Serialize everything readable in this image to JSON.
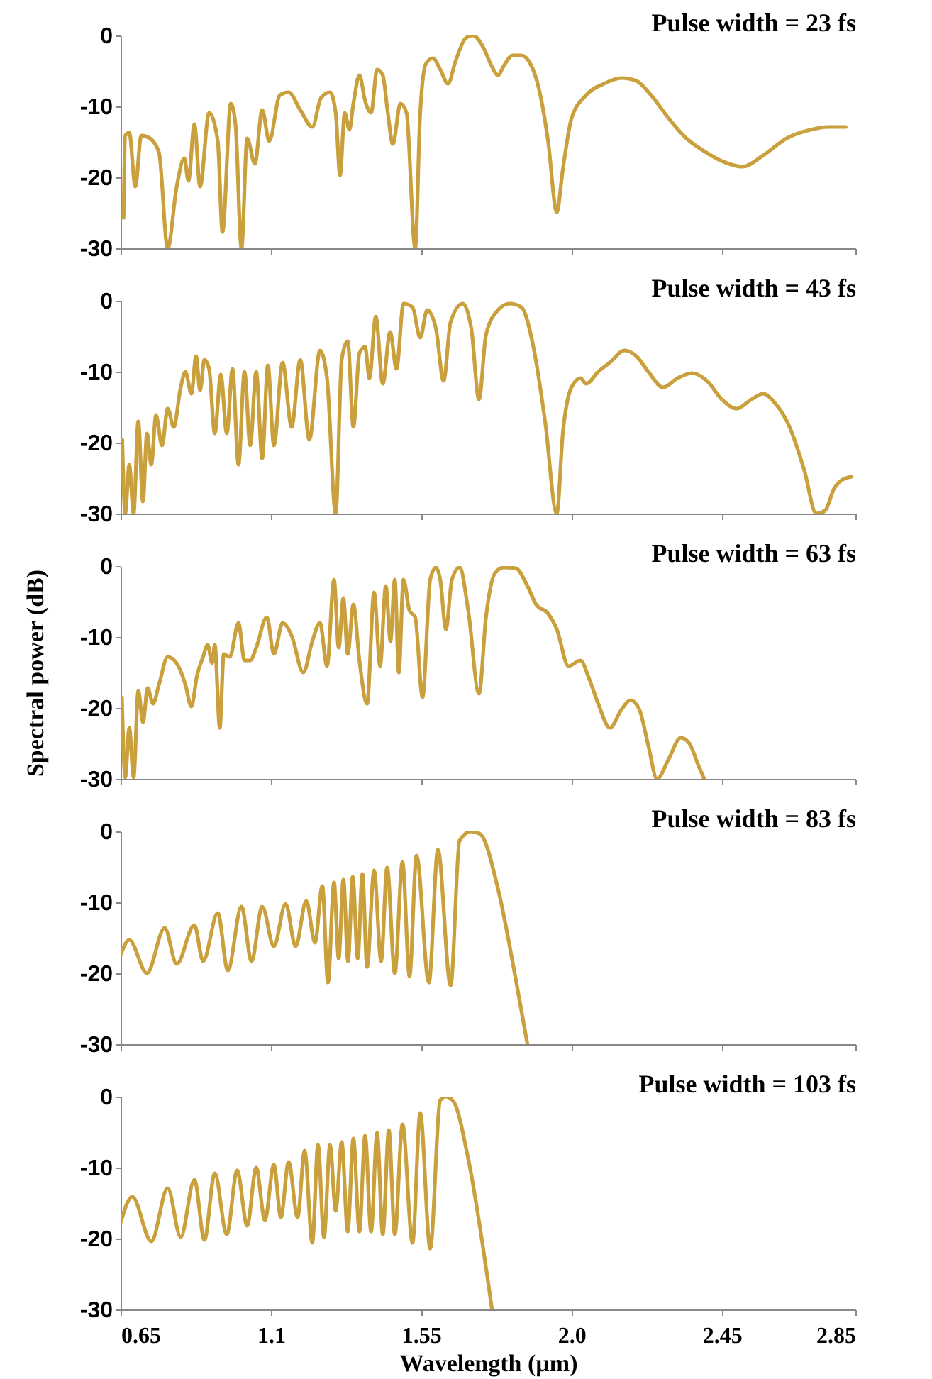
{
  "chart_data": [
    {
      "type": "line",
      "title": "Pulse width = 23 fs",
      "color": "#c9a03c",
      "xlim": [
        0.65,
        2.85
      ],
      "xticks": [
        0.65,
        1.1,
        1.55,
        2,
        2.45,
        2.85
      ],
      "ylim": [
        -30,
        0
      ],
      "yticks": [
        0,
        -10,
        -20,
        -30
      ],
      "tick_labels": "y",
      "x": [
        0.659,
        0.664,
        0.676,
        0.694,
        0.712,
        0.738,
        0.765,
        0.791,
        0.818,
        0.841,
        0.853,
        0.871,
        0.888,
        0.915,
        0.941,
        0.955,
        0.98,
        0.994,
        1.012,
        1.029,
        1.052,
        1.074,
        1.095,
        1.127,
        1.153,
        1.188,
        1.224,
        1.25,
        1.277,
        1.294,
        1.307,
        1.321,
        1.335,
        1.347,
        1.365,
        1.382,
        1.4,
        1.418,
        1.435,
        1.45,
        1.465,
        1.488,
        1.506,
        1.532,
        1.547,
        1.564,
        1.585,
        1.607,
        1.63,
        1.653,
        1.683,
        1.705,
        1.735,
        1.762,
        1.78,
        1.797,
        1.824,
        1.85,
        1.877,
        1.903,
        1.93,
        1.956,
        1.974,
        2.0,
        2.044,
        2.097,
        2.15,
        2.194,
        2.238,
        2.291,
        2.344,
        2.397,
        2.45,
        2.512,
        2.574,
        2.644,
        2.715,
        2.768,
        2.821
      ],
      "values": [
        -25.7,
        -14.1,
        -13.7,
        -21.3,
        -14.1,
        -14.5,
        -16.5,
        -30,
        -21.3,
        -17.3,
        -20.5,
        -12.5,
        -21.3,
        -10.9,
        -14.9,
        -27.7,
        -9.6,
        -12.5,
        -30,
        -14.5,
        -18.1,
        -10.5,
        -14.9,
        -8.4,
        -8.0,
        -10.5,
        -12.9,
        -8.8,
        -8.0,
        -10.9,
        -19.7,
        -10.9,
        -13.3,
        -9.6,
        -5.6,
        -9.2,
        -10.9,
        -4.8,
        -5.6,
        -10.9,
        -15.3,
        -9.6,
        -10.9,
        -30,
        -10.9,
        -4.0,
        -3.2,
        -4.8,
        -6.8,
        -3.6,
        -0.4,
        0,
        -1.6,
        -4.4,
        -5.6,
        -4.3,
        -2.8,
        -2.8,
        -4.0,
        -7.6,
        -14.9,
        -24.9,
        -18.9,
        -11.7,
        -8.4,
        -6.8,
        -6.0,
        -6.4,
        -8.4,
        -11.7,
        -14.5,
        -16.3,
        -17.7,
        -18.5,
        -16.9,
        -14.5,
        -13.3,
        -12.9,
        -12.9
      ]
    },
    {
      "type": "line",
      "title": "Pulse width = 43 fs",
      "color": "#c9a03c",
      "xlim": [
        0.65,
        2.85
      ],
      "xticks": [
        0.65,
        1.1,
        1.55,
        2,
        2.45,
        2.85
      ],
      "ylim": [
        -30,
        0
      ],
      "yticks": [
        0,
        -10,
        -20,
        -30
      ],
      "tick_labels": "y",
      "x": [
        0.655,
        0.664,
        0.676,
        0.689,
        0.703,
        0.717,
        0.729,
        0.742,
        0.756,
        0.774,
        0.791,
        0.809,
        0.83,
        0.844,
        0.862,
        0.876,
        0.888,
        0.901,
        0.915,
        0.932,
        0.95,
        0.968,
        0.985,
        1.003,
        1.021,
        1.038,
        1.056,
        1.074,
        1.091,
        1.109,
        1.135,
        1.162,
        1.188,
        1.215,
        1.247,
        1.268,
        1.294,
        1.312,
        1.33,
        1.347,
        1.365,
        1.382,
        1.395,
        1.414,
        1.435,
        1.457,
        1.476,
        1.497,
        1.524,
        1.547,
        1.568,
        1.594,
        1.617,
        1.638,
        1.674,
        1.7,
        1.723,
        1.744,
        1.78,
        1.815,
        1.85,
        1.886,
        1.921,
        1.956,
        1.974,
        2.0,
        2.027,
        2.044,
        2.08,
        2.115,
        2.159,
        2.194,
        2.23,
        2.274,
        2.318,
        2.362,
        2.406,
        2.45,
        2.494,
        2.539,
        2.574,
        2.609,
        2.653,
        2.697,
        2.733,
        2.759,
        2.786,
        2.812,
        2.839
      ],
      "values": [
        -19.6,
        -30,
        -23.1,
        -30,
        -17.0,
        -28.3,
        -18.7,
        -23.1,
        -16.1,
        -20.4,
        -15.2,
        -17.8,
        -12.2,
        -10.0,
        -13.1,
        -7.8,
        -12.6,
        -8.3,
        -9.6,
        -18.7,
        -10.4,
        -18.7,
        -9.6,
        -23.1,
        -10.0,
        -20.4,
        -10.0,
        -22.2,
        -9.1,
        -20.4,
        -8.7,
        -17.8,
        -8.3,
        -19.6,
        -7.0,
        -10.9,
        -30,
        -8.3,
        -5.7,
        -17.8,
        -7.4,
        -6.5,
        -10.9,
        -2.2,
        -11.7,
        -4.4,
        -9.6,
        -0.4,
        -0.9,
        -5.2,
        -1.3,
        -3.9,
        -11.3,
        -3.0,
        -0.4,
        -3.9,
        -13.9,
        -4.8,
        -1.3,
        -0.4,
        -0.9,
        -6.5,
        -17.0,
        -30,
        -18.7,
        -12.2,
        -10.9,
        -11.7,
        -10.0,
        -8.7,
        -7.0,
        -7.8,
        -10.0,
        -12.2,
        -10.9,
        -10.2,
        -11.3,
        -13.9,
        -15.2,
        -13.9,
        -13.1,
        -14.4,
        -17.8,
        -23.9,
        -30,
        -29.6,
        -26.5,
        -25.2,
        -24.8
      ]
    },
    {
      "type": "line",
      "title": "Pulse width = 63 fs",
      "ylabel": "Spectral power (dB)",
      "color": "#c9a03c",
      "xlim": [
        0.65,
        2.85
      ],
      "xticks": [
        0.65,
        1.1,
        1.55,
        2,
        2.45,
        2.85
      ],
      "ylim": [
        -30,
        0
      ],
      "yticks": [
        0,
        -10,
        -20,
        -30
      ],
      "tick_labels": "y",
      "x": [
        0.654,
        0.664,
        0.676,
        0.689,
        0.703,
        0.717,
        0.731,
        0.747,
        0.765,
        0.791,
        0.818,
        0.844,
        0.862,
        0.879,
        0.897,
        0.911,
        0.924,
        0.932,
        0.947,
        0.959,
        0.977,
        1.003,
        1.021,
        1.038,
        1.056,
        1.088,
        1.109,
        1.135,
        1.162,
        1.197,
        1.224,
        1.247,
        1.268,
        1.289,
        1.303,
        1.317,
        1.33,
        1.347,
        1.365,
        1.388,
        1.409,
        1.427,
        1.444,
        1.458,
        1.471,
        1.483,
        1.497,
        1.515,
        1.532,
        1.554,
        1.577,
        1.594,
        1.607,
        1.624,
        1.642,
        1.665,
        1.691,
        1.723,
        1.744,
        1.771,
        1.797,
        1.833,
        1.868,
        1.894,
        1.93,
        1.956,
        1.991,
        2.027,
        2.053,
        2.08,
        2.115,
        2.15,
        2.177,
        2.203,
        2.23,
        2.256,
        2.291,
        2.327,
        2.353,
        2.38,
        2.397
      ],
      "values": [
        -18.5,
        -29.8,
        -22.8,
        -29.8,
        -17.6,
        -22.0,
        -17.2,
        -19.4,
        -16.7,
        -12.8,
        -13.7,
        -16.7,
        -19.8,
        -15.4,
        -12.8,
        -11.1,
        -13.7,
        -11.1,
        -22.8,
        -12.4,
        -12.8,
        -8.0,
        -13.3,
        -13.3,
        -11.5,
        -7.2,
        -12.4,
        -8.0,
        -9.8,
        -15.0,
        -10.6,
        -8.0,
        -14.1,
        -1.9,
        -11.5,
        -4.5,
        -12.4,
        -5.4,
        -13.3,
        -19.4,
        -3.7,
        -14.1,
        -2.8,
        -10.6,
        -1.9,
        -15.0,
        -1.9,
        -6.3,
        -7.2,
        -18.5,
        -1.9,
        -0.2,
        -1.9,
        -8.9,
        -1.9,
        -0.2,
        -6.3,
        -18.0,
        -7.2,
        -1.0,
        -0.2,
        -0.3,
        -2.8,
        -5.4,
        -6.7,
        -8.9,
        -14.1,
        -13.3,
        -15.9,
        -19.4,
        -22.8,
        -20.2,
        -18.9,
        -20.2,
        -25.3,
        -30,
        -27.2,
        -24.2,
        -25.0,
        -28.1,
        -30
      ]
    },
    {
      "type": "line",
      "title": "Pulse width = 83 fs",
      "color": "#c9a03c",
      "xlim": [
        0.65,
        2.85
      ],
      "xticks": [
        0.65,
        1.1,
        1.55,
        2,
        2.45,
        2.85
      ],
      "ylim": [
        -30,
        0
      ],
      "yticks": [
        0,
        -10,
        -20,
        -30
      ],
      "tick_labels": "y",
      "x": [
        0.65,
        0.676,
        0.729,
        0.782,
        0.818,
        0.871,
        0.897,
        0.941,
        0.971,
        1.012,
        1.042,
        1.074,
        1.109,
        1.144,
        1.174,
        1.206,
        1.232,
        1.254,
        1.271,
        1.289,
        1.303,
        1.317,
        1.331,
        1.345,
        1.36,
        1.374,
        1.388,
        1.409,
        1.43,
        1.448,
        1.471,
        1.494,
        1.515,
        1.536,
        1.573,
        1.6,
        1.638,
        1.665,
        1.7,
        1.727,
        1.78,
        1.833,
        1.868
      ],
      "values": [
        -17.4,
        -15.3,
        -20.0,
        -13.6,
        -18.7,
        -13.2,
        -18.3,
        -11.5,
        -19.6,
        -10.6,
        -18.3,
        -10.6,
        -16.2,
        -10.2,
        -16.2,
        -9.8,
        -15.7,
        -7.7,
        -21.3,
        -7.2,
        -17.9,
        -6.8,
        -18.3,
        -6.4,
        -17.9,
        -6.0,
        -19.1,
        -5.5,
        -18.3,
        -5.1,
        -20.0,
        -4.3,
        -20.4,
        -3.4,
        -21.3,
        -2.6,
        -21.7,
        -1.3,
        0,
        -0.4,
        -8.1,
        -20.8,
        -30
      ]
    },
    {
      "type": "line",
      "title": "Pulse width = 103 fs",
      "xlabel": "Wavelength (µm)",
      "color": "#c9a03c",
      "xlim": [
        0.65,
        2.85
      ],
      "xticks": [
        0.65,
        1.1,
        1.55,
        {
          "value": 2,
          "label": "2.0"
        },
        2.45,
        2.85
      ],
      "ylim": [
        -30,
        0
      ],
      "yticks": [
        0,
        -10,
        -20,
        -30
      ],
      "x": [
        0.65,
        0.685,
        0.742,
        0.791,
        0.83,
        0.871,
        0.901,
        0.932,
        0.968,
        0.999,
        1.029,
        1.056,
        1.082,
        1.109,
        1.13,
        1.153,
        1.18,
        1.201,
        1.224,
        1.241,
        1.259,
        1.277,
        1.294,
        1.312,
        1.33,
        1.347,
        1.365,
        1.382,
        1.4,
        1.418,
        1.435,
        1.453,
        1.471,
        1.494,
        1.524,
        1.547,
        1.577,
        1.607,
        1.624,
        1.647,
        1.691,
        1.762
      ],
      "values": [
        -17.8,
        -14.1,
        -20.4,
        -12.9,
        -19.8,
        -11.7,
        -20.2,
        -10.8,
        -19.4,
        -10.4,
        -18.2,
        -10.0,
        -17.4,
        -9.6,
        -17.0,
        -9.2,
        -17.0,
        -7.6,
        -20.6,
        -6.8,
        -19.8,
        -6.8,
        -16.1,
        -6.4,
        -19.0,
        -5.9,
        -19.0,
        -5.5,
        -19.0,
        -5.1,
        -19.4,
        -4.7,
        -19.4,
        -3.9,
        -20.6,
        -2.3,
        -21.4,
        -0.5,
        0,
        -0.7,
        -8.8,
        -30
      ]
    }
  ]
}
